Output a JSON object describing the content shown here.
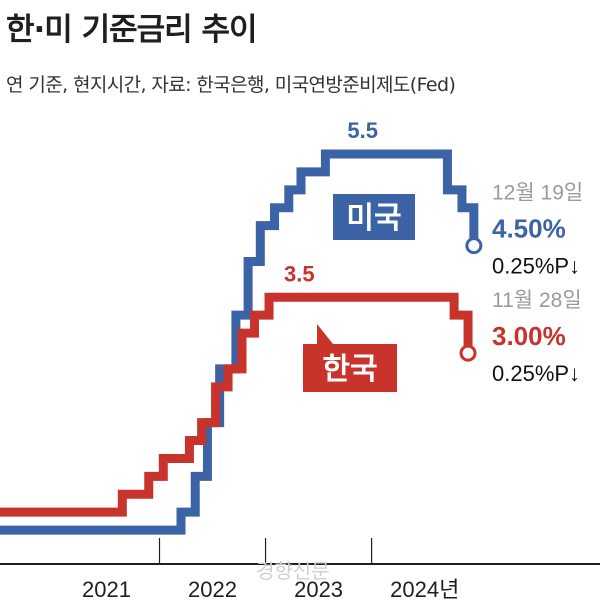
{
  "title": "한·미 기준금리 추이",
  "subtitle": "연 기준, 현지시간, 자료: 한국은행, 미국연방준비제도(Fed)",
  "watermark": "경향신문",
  "colors": {
    "us": "#3c63a5",
    "korea": "#c8342b",
    "axis": "#1f1f1f"
  },
  "chart_data": {
    "type": "line",
    "step": true,
    "unit": "%",
    "x_ticks": [
      "2021",
      "2022",
      "2023",
      "2024년"
    ],
    "ylim": [
      0,
      5.5
    ],
    "series": [
      {
        "name": "미국",
        "points": [
          [
            "2020-07-01",
            0.25
          ],
          [
            "2022-03-16",
            0.5
          ],
          [
            "2022-05-04",
            1.0
          ],
          [
            "2022-06-15",
            1.75
          ],
          [
            "2022-07-27",
            2.5
          ],
          [
            "2022-09-21",
            3.25
          ],
          [
            "2022-11-02",
            4.0
          ],
          [
            "2022-12-14",
            4.5
          ],
          [
            "2023-02-01",
            4.75
          ],
          [
            "2023-03-22",
            5.0
          ],
          [
            "2023-05-03",
            5.25
          ],
          [
            "2023-07-26",
            5.5
          ],
          [
            "2024-09-18",
            5.0
          ],
          [
            "2024-11-07",
            4.75
          ],
          [
            "2024-12-18",
            4.5
          ]
        ],
        "last_value_label": "4.50%",
        "last_date_label": "12월 19일",
        "change_label": "0.25%P↓",
        "peak_label": "5.5"
      },
      {
        "name": "한국",
        "points": [
          [
            "2020-07-01",
            0.5
          ],
          [
            "2021-08-26",
            0.75
          ],
          [
            "2021-11-25",
            1.0
          ],
          [
            "2022-01-14",
            1.25
          ],
          [
            "2022-04-14",
            1.5
          ],
          [
            "2022-05-26",
            1.75
          ],
          [
            "2022-07-13",
            2.25
          ],
          [
            "2022-08-25",
            2.5
          ],
          [
            "2022-10-12",
            3.0
          ],
          [
            "2022-11-24",
            3.25
          ],
          [
            "2023-01-13",
            3.5
          ],
          [
            "2024-10-11",
            3.25
          ],
          [
            "2024-11-28",
            3.0
          ]
        ],
        "last_value_label": "3.00%",
        "last_date_label": "11월 28일",
        "change_label": "0.25%P↓",
        "peak_label": "3.5"
      }
    ]
  }
}
